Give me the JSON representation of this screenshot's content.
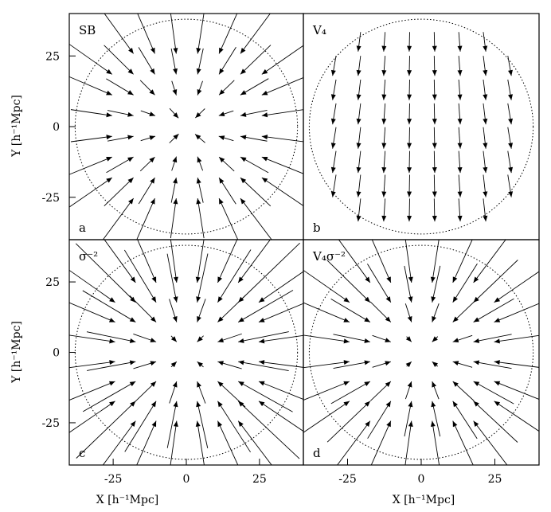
{
  "figure": {
    "xlabel": "X [h⁻¹Mpc]",
    "ylabel": "Y [h⁻¹Mpc]",
    "xticks": [
      -25,
      0,
      25
    ],
    "yticks": [
      25,
      0,
      -25
    ]
  },
  "chart_data": [
    {
      "type": "vector-field",
      "panel_name": "SB",
      "panel_letter": "a",
      "field": "converging-grid",
      "xlim": [
        -40,
        40
      ],
      "ylim": [
        -40,
        40
      ],
      "survey_radius": 38
    },
    {
      "type": "vector-field",
      "panel_name": "V₄",
      "panel_letter": "b",
      "field": "uniform-downward",
      "xlim": [
        -40,
        40
      ],
      "ylim": [
        -40,
        40
      ],
      "survey_radius": 38
    },
    {
      "type": "vector-field",
      "panel_name": "σ⁻²",
      "panel_letter": "c",
      "field": "radial-to-center",
      "xlim": [
        -40,
        40
      ],
      "ylim": [
        -40,
        40
      ],
      "survey_radius": 38
    },
    {
      "type": "vector-field",
      "panel_name": "V₄σ⁻²",
      "panel_letter": "d",
      "field": "radial-to-center",
      "xlim": [
        -40,
        40
      ],
      "ylim": [
        -40,
        40
      ],
      "survey_radius": 38
    }
  ]
}
